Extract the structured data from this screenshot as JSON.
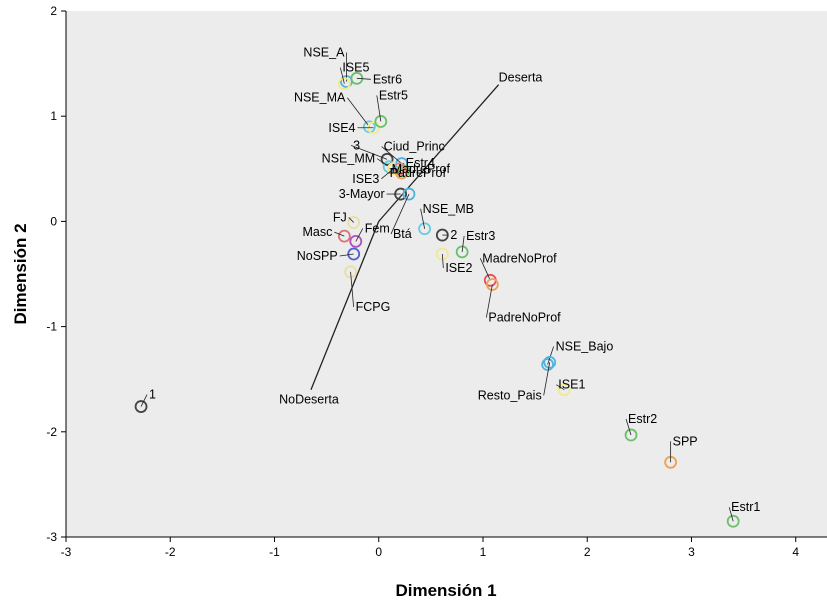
{
  "chart_data": {
    "type": "scatter",
    "title": "",
    "xlabel": "Dimensión 1",
    "ylabel": "Dimensión 2",
    "xlim": [
      -3,
      4.3
    ],
    "ylim": [
      -3,
      2
    ],
    "xticks": [
      "-3",
      "-2",
      "-1",
      "0",
      "1",
      "2",
      "3",
      "4"
    ],
    "yticks": [
      "2",
      "1",
      "0",
      "-1",
      "-2",
      "-3"
    ],
    "grid": false,
    "background": "#ececec",
    "points": [
      {
        "label": "NSE_A",
        "x": -0.31,
        "y": 1.33,
        "color": "#4fb3e0"
      },
      {
        "label": "ISE5",
        "x": -0.33,
        "y": 1.31,
        "color": "#f3e98b"
      },
      {
        "label": "Estr6",
        "x": -0.21,
        "y": 1.36,
        "color": "#6bc06b"
      },
      {
        "label": "NSE_MA",
        "x": -0.09,
        "y": 0.9,
        "color": "#66cce0"
      },
      {
        "label": "ISE4",
        "x": -0.05,
        "y": 0.89,
        "color": "#f3e98b"
      },
      {
        "label": "Estr5",
        "x": 0.02,
        "y": 0.95,
        "color": "#6bc06b"
      },
      {
        "label": "3",
        "x": 0.08,
        "y": 0.59,
        "color": "#444444"
      },
      {
        "label": "Ciud_Princ",
        "x": 0.22,
        "y": 0.55,
        "color": "#4fb3e0"
      },
      {
        "label": "NSE_MM",
        "x": 0.1,
        "y": 0.52,
        "color": "#66cce0"
      },
      {
        "label": "ISE3",
        "x": 0.14,
        "y": 0.5,
        "color": "#f3e98b"
      },
      {
        "label": "Estr4",
        "x": 0.24,
        "y": 0.48,
        "color": "#6bc06b"
      },
      {
        "label": "MadreProf",
        "x": 0.2,
        "y": 0.5,
        "color": "#e88080"
      },
      {
        "label": "PadreProf",
        "x": 0.22,
        "y": 0.46,
        "color": "#f0a050"
      },
      {
        "label": "3-Mayor",
        "x": 0.21,
        "y": 0.26,
        "color": "#444444"
      },
      {
        "label": "Btá",
        "x": 0.29,
        "y": 0.26,
        "color": "#4fb3e0"
      },
      {
        "label": "NSE_MB",
        "x": 0.44,
        "y": -0.07,
        "color": "#66cce0"
      },
      {
        "label": "2",
        "x": 0.61,
        "y": -0.13,
        "color": "#444444"
      },
      {
        "label": "Estr3",
        "x": 0.8,
        "y": -0.29,
        "color": "#6bc06b"
      },
      {
        "label": "ISE2",
        "x": 0.61,
        "y": -0.31,
        "color": "#f3e98b"
      },
      {
        "label": "MadreNoProf",
        "x": 1.07,
        "y": -0.56,
        "color": "#e05060"
      },
      {
        "label": "PadreNoProf",
        "x": 1.09,
        "y": -0.6,
        "color": "#f0a050"
      },
      {
        "label": "Masc",
        "x": -0.33,
        "y": -0.14,
        "color": "#e07070"
      },
      {
        "label": "FJ",
        "x": -0.24,
        "y": -0.01,
        "color": "#e8e0a0"
      },
      {
        "label": "Fem",
        "x": -0.22,
        "y": -0.19,
        "color": "#b050c0"
      },
      {
        "label": "NoSPP",
        "x": -0.24,
        "y": -0.31,
        "color": "#5060d0"
      },
      {
        "label": "FCPG",
        "x": -0.27,
        "y": -0.48,
        "color": "#e8e0a0"
      },
      {
        "label": "NSE_Bajo",
        "x": 1.62,
        "y": -1.36,
        "color": "#4fb3e0"
      },
      {
        "label": "Resto_Pais",
        "x": 1.64,
        "y": -1.34,
        "color": "#4fb3e0"
      },
      {
        "label": "ISE1",
        "x": 1.78,
        "y": -1.6,
        "color": "#f3e98b"
      },
      {
        "label": "1",
        "x": -2.28,
        "y": -1.76,
        "color": "#444444"
      },
      {
        "label": "Estr2",
        "x": 2.42,
        "y": -2.03,
        "color": "#6bc06b"
      },
      {
        "label": "SPP",
        "x": 2.8,
        "y": -2.29,
        "color": "#f0a050"
      },
      {
        "label": "Estr1",
        "x": 3.4,
        "y": -2.85,
        "color": "#6bc06b"
      }
    ],
    "vectors": [
      {
        "label": "Deserta",
        "x": 1.15,
        "y": 1.3
      },
      {
        "label": "NoDeserta",
        "x": -0.65,
        "y": -1.6
      }
    ]
  }
}
